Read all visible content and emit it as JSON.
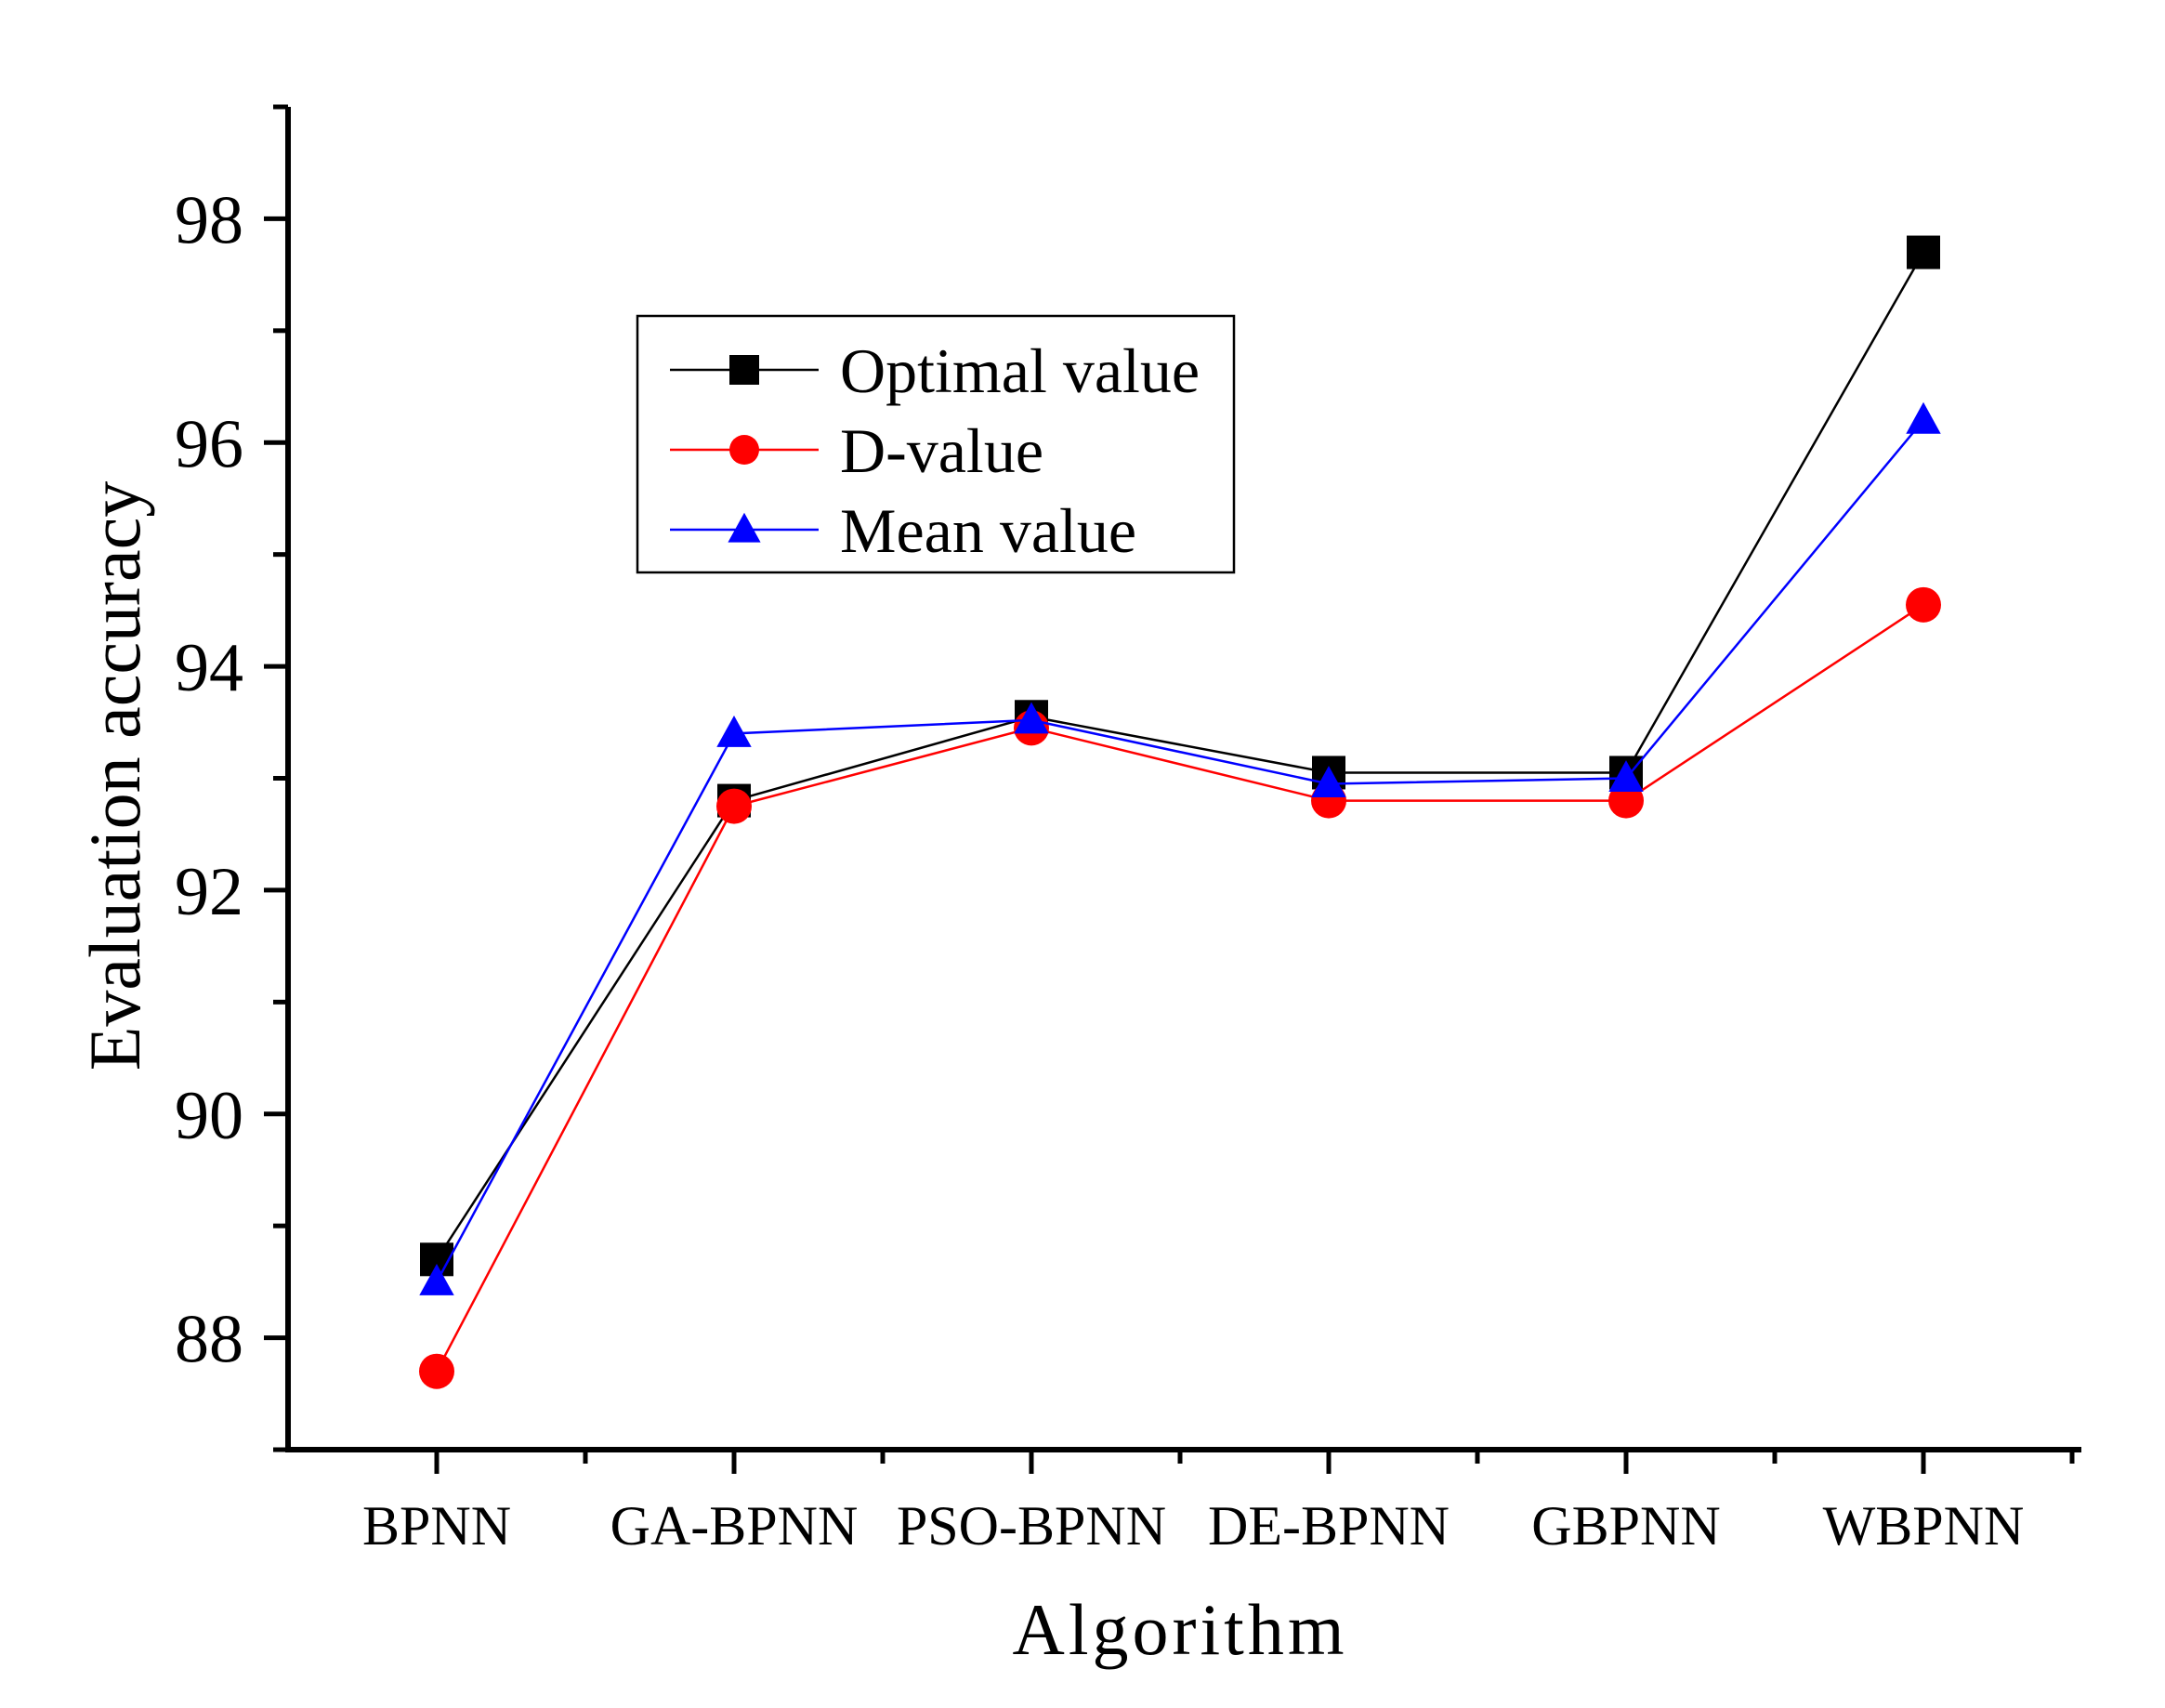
{
  "chart_data": {
    "type": "line",
    "title": "",
    "xlabel": "Algorithm",
    "ylabel": "Evaluation accuracy",
    "categories": [
      "BPNN",
      "GA-BPNN",
      "PSO-BPNN",
      "DE-BPNN",
      "GBPNN",
      "WBPNN"
    ],
    "ylim": [
      87,
      99
    ],
    "yticks": [
      88,
      90,
      92,
      94,
      96,
      98
    ],
    "grid": false,
    "legend_position": "upper-middle",
    "series": [
      {
        "name": "Optimal value",
        "color": "#000000",
        "marker": "square",
        "values": [
          88.7,
          92.8,
          93.55,
          93.05,
          93.05,
          97.7
        ]
      },
      {
        "name": "D-value",
        "color": "#ff0000",
        "marker": "circle",
        "values": [
          87.7,
          92.75,
          93.45,
          92.8,
          92.8,
          94.55
        ]
      },
      {
        "name": "Mean value",
        "color": "#0000ff",
        "marker": "triangle",
        "values": [
          88.5,
          93.4,
          93.52,
          92.95,
          93.0,
          96.2
        ]
      }
    ]
  }
}
